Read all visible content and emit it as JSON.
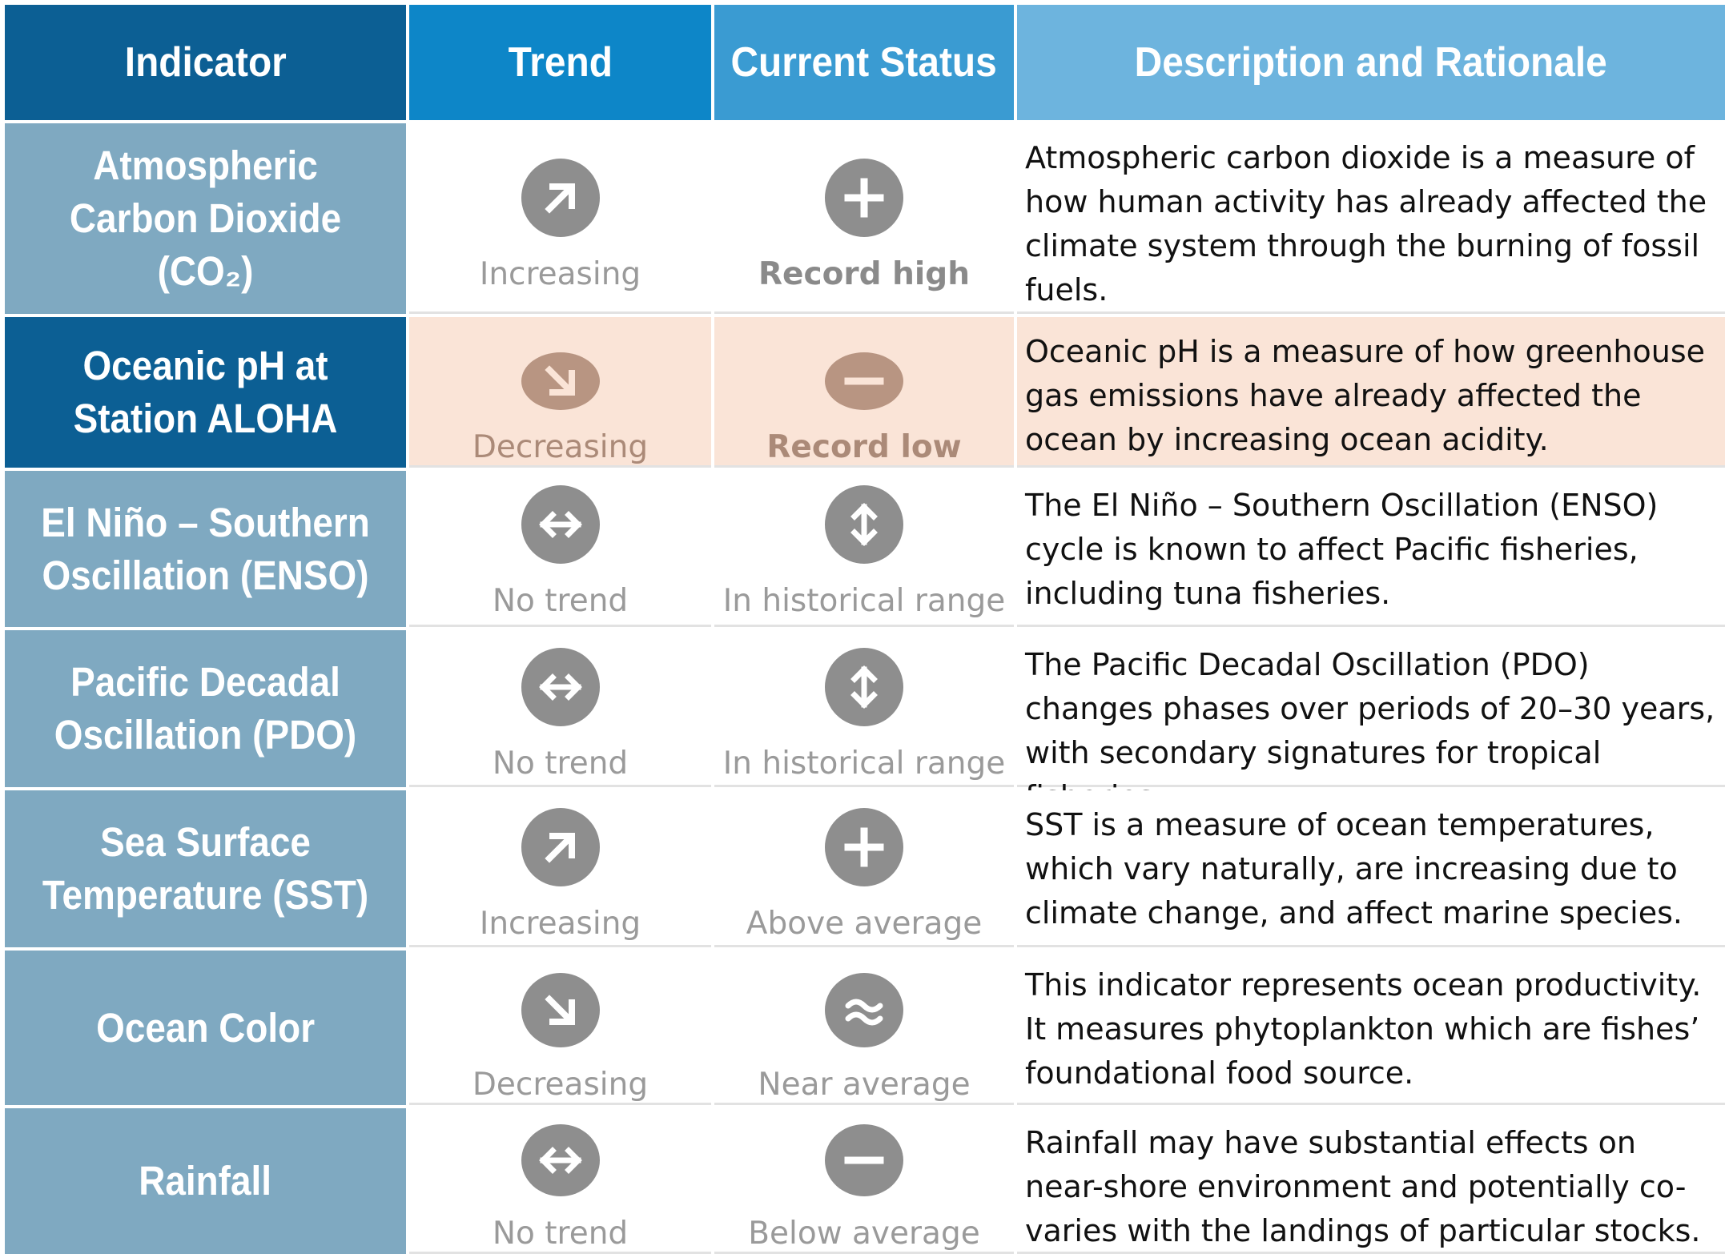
{
  "headers": {
    "indicator": "Indicator",
    "trend": "Trend",
    "status": "Current Status",
    "description": "Description and Rationale"
  },
  "rows": [
    {
      "indicator": "Atmospheric Carbon Dioxide (CO₂)",
      "trend_icon": "arrow-up-right-icon",
      "trend": "Increasing",
      "status_icon": "plus-icon",
      "status": "Record high",
      "description": "Atmospheric carbon dioxide is a measure of how human activity has already affected the climate system through the burning of fossil fuels."
    },
    {
      "indicator": "Oceanic pH at Station ALOHA",
      "trend_icon": "arrow-down-right-icon",
      "trend": "Decreasing",
      "status_icon": "minus-icon",
      "status": "Record low",
      "description": "Oceanic pH is a measure of how greenhouse gas emissions have already affected the ocean by increasing ocean acidity.",
      "highlight_color": "#fae4d7"
    },
    {
      "indicator": "El Niño – Southern Oscillation (ENSO)",
      "trend_icon": "arrow-left-right-icon",
      "trend": "No trend",
      "status_icon": "arrow-up-down-icon",
      "status": "In historical range",
      "description": "The El Niño – Southern Oscillation (ENSO) cycle is known to affect Pacific fisheries, including tuna fisheries."
    },
    {
      "indicator": "Pacific Decadal Oscillation (PDO)",
      "trend_icon": "arrow-left-right-icon",
      "trend": "No trend",
      "status_icon": "arrow-up-down-icon",
      "status": "In historical range",
      "description": "The Pacific Decadal Oscillation (PDO) changes phases over periods of 20–30 years, with secondary signatures for tropical fisheries."
    },
    {
      "indicator": "Sea Surface Temperature (SST)",
      "trend_icon": "arrow-up-right-icon",
      "trend": "Increasing",
      "status_icon": "plus-icon",
      "status": "Above average",
      "description": "SST is a measure of ocean temperatures, which vary naturally, are increasing due to climate change, and affect marine species."
    },
    {
      "indicator": "Ocean Color",
      "trend_icon": "arrow-down-right-icon",
      "trend": "Decreasing",
      "status_icon": "approx-icon",
      "status": "Near average",
      "description": "This indicator represents ocean productivity. It measures phytoplankton which are fishes’ foundational food source."
    },
    {
      "indicator": "Rainfall",
      "trend_icon": "arrow-left-right-icon",
      "trend": "No trend",
      "status_icon": "minus-icon",
      "status": "Below average",
      "description": "Rainfall may have substantial effects on near-shore environment and potentially co-varies with the landings of particular stocks."
    }
  ],
  "colors": {
    "header_indicator": "#0c5f94",
    "header_trend": "#0d86c8",
    "header_status": "#3a9bd2",
    "header_description": "#6db4de",
    "indicator_cell": "#7fa9c1",
    "icon_circle": "#8e8e8e"
  }
}
